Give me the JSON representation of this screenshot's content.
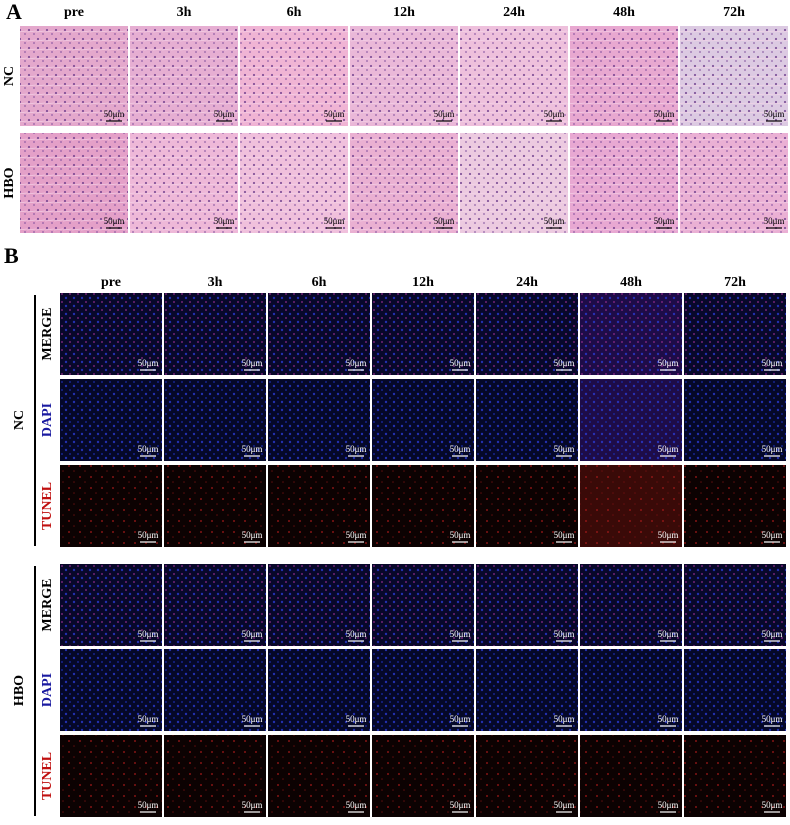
{
  "panel_a": {
    "label": "A",
    "columns": [
      "pre",
      "3h",
      "6h",
      "12h",
      "24h",
      "48h",
      "72h"
    ],
    "rows": [
      "NC",
      "HBO"
    ]
  },
  "panel_b": {
    "label": "B",
    "columns": [
      "pre",
      "3h",
      "6h",
      "12h",
      "24h",
      "48h",
      "72h"
    ],
    "groups": [
      {
        "label": "NC",
        "rows": [
          "MERGE",
          "DAPI",
          "TUNEL"
        ]
      },
      {
        "label": "HBO",
        "rows": [
          "MERGE",
          "DAPI",
          "TUNEL"
        ]
      }
    ]
  },
  "scale_bar": "50μm"
}
